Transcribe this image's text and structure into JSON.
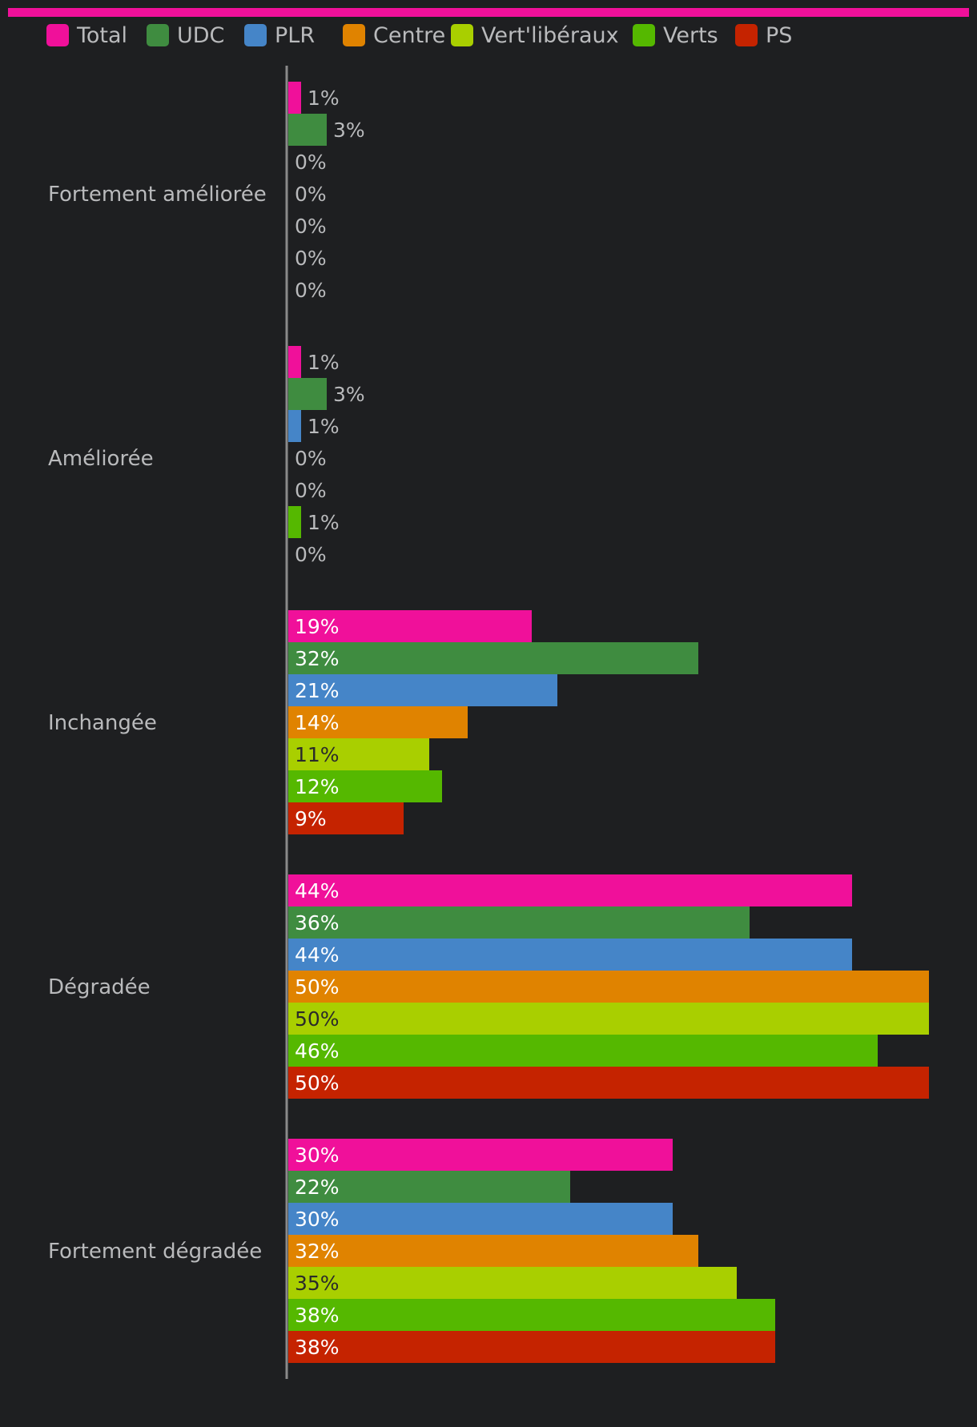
{
  "chart_data": {
    "type": "bar",
    "orientation": "horizontal",
    "accent_color": "#f0109a",
    "categories": [
      "Fortement améliorée",
      "Améliorée",
      "Inchangée",
      "Dégradée",
      "Fortement dégradée"
    ],
    "series": [
      {
        "name": "Total",
        "color": "#f0109a",
        "values": [
          1,
          1,
          19,
          44,
          30
        ]
      },
      {
        "name": "UDC",
        "color": "#3f8c40",
        "values": [
          3,
          3,
          32,
          36,
          22
        ]
      },
      {
        "name": "PLR",
        "color": "#4585c8",
        "values": [
          0,
          1,
          21,
          44,
          30
        ]
      },
      {
        "name": "Centre",
        "color": "#e08300",
        "values": [
          0,
          0,
          14,
          50,
          32
        ]
      },
      {
        "name": "Vert'libéraux",
        "color": "#a9cf00",
        "values": [
          0,
          0,
          11,
          50,
          35
        ]
      },
      {
        "name": "Verts",
        "color": "#55b800",
        "values": [
          0,
          1,
          12,
          46,
          38
        ]
      },
      {
        "name": "PS",
        "color": "#c52300",
        "values": [
          0,
          0,
          9,
          50,
          38
        ]
      }
    ],
    "value_suffix": "%",
    "xlim": [
      0,
      50
    ],
    "legend_position": "top-left",
    "grid": false
  }
}
